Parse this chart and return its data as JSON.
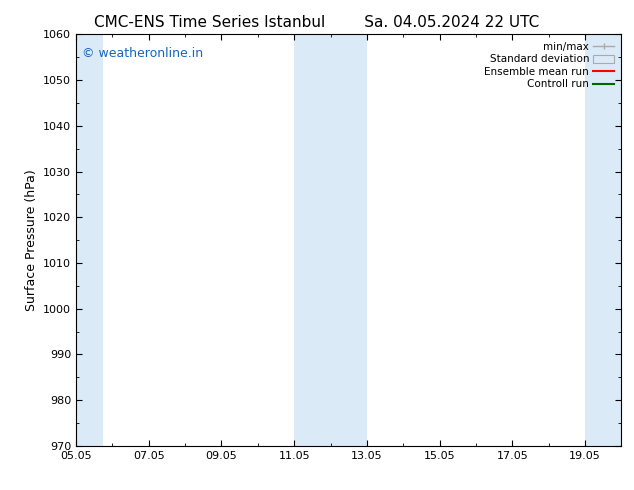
{
  "title_left": "CMC-ENS Time Series Istanbul",
  "title_right": "Sa. 04.05.2024 22 UTC",
  "ylabel": "Surface Pressure (hPa)",
  "ylim": [
    970,
    1060
  ],
  "yticks": [
    970,
    980,
    990,
    1000,
    1010,
    1020,
    1030,
    1040,
    1050,
    1060
  ],
  "xlim": [
    0,
    15
  ],
  "xtick_labels": [
    "05.05",
    "07.05",
    "09.05",
    "11.05",
    "13.05",
    "15.05",
    "17.05",
    "19.05"
  ],
  "xtick_positions": [
    0,
    2,
    4,
    6,
    8,
    10,
    12,
    14
  ],
  "shaded_bands": [
    {
      "x_start": 0.0,
      "x_end": 0.75
    },
    {
      "x_start": 6.0,
      "x_end": 8.0
    },
    {
      "x_start": 14.0,
      "x_end": 15.0
    }
  ],
  "shaded_color": "#daeaf7",
  "watermark_text": "© weatheronline.in",
  "watermark_color": "#1565c0",
  "background_color": "#ffffff",
  "legend_items": [
    {
      "label": "min/max",
      "color": "#aaaaaa",
      "type": "errorbar"
    },
    {
      "label": "Standard deviation",
      "color": "#c8dff0",
      "type": "bar"
    },
    {
      "label": "Ensemble mean run",
      "color": "#ff0000",
      "type": "line"
    },
    {
      "label": "Controll run",
      "color": "#006600",
      "type": "line"
    }
  ],
  "title_fontsize": 11,
  "tick_fontsize": 8,
  "legend_fontsize": 7.5,
  "ylabel_fontsize": 9,
  "watermark_fontsize": 9
}
